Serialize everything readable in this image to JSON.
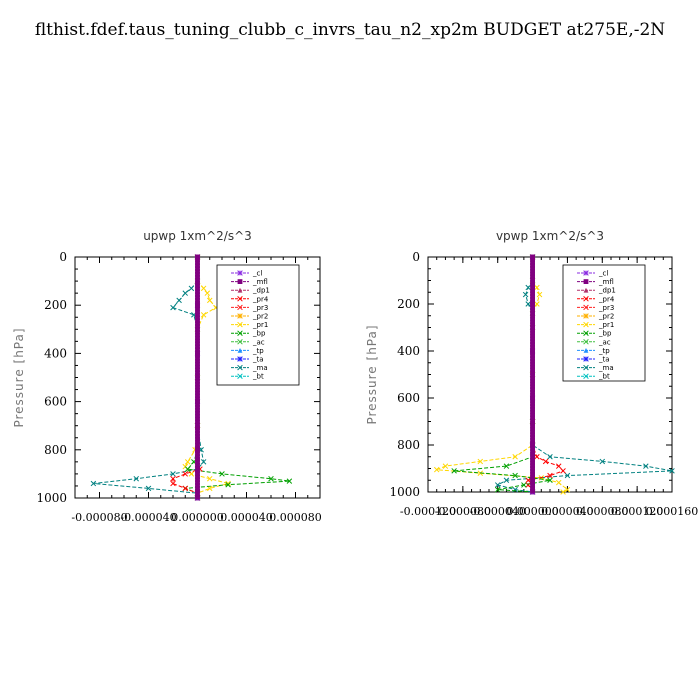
{
  "title": "flthist.fdef.taus_tuning_clubb_c_invrs_tau_n2_xp2m  BUDGET at275E,-2N",
  "legend_entries": [
    "_cl",
    "_mfl",
    "_dp1",
    "_pr4",
    "_pr3",
    "_pr2",
    "_pr1",
    "_bp",
    "_ac",
    "_tp",
    "_ta",
    "_ma",
    "_bt"
  ],
  "series_styles": [
    {
      "name": "_cl",
      "color": "#8a2be2",
      "marker": "star"
    },
    {
      "name": "_mfl",
      "color": "#800080",
      "marker": "square"
    },
    {
      "name": "_dp1",
      "color": "#b0306a",
      "marker": "tri"
    },
    {
      "name": "_pr4",
      "color": "#ff0000",
      "marker": "x"
    },
    {
      "name": "_pr3",
      "color": "#ff2020",
      "marker": "x"
    },
    {
      "name": "_pr2",
      "color": "#ffb000",
      "marker": "star"
    },
    {
      "name": "_pr1",
      "color": "#ffd700",
      "marker": "x"
    },
    {
      "name": "_bp",
      "color": "#00a000",
      "marker": "x"
    },
    {
      "name": "_ac",
      "color": "#40c040",
      "marker": "x"
    },
    {
      "name": "_tp",
      "color": "#1e90ff",
      "marker": "tri"
    },
    {
      "name": "_ta",
      "color": "#2020ff",
      "marker": "star"
    },
    {
      "name": "_ma",
      "color": "#008080",
      "marker": "x"
    },
    {
      "name": "_bt",
      "color": "#00c0c0",
      "marker": "x"
    }
  ],
  "chart_data": [
    {
      "type": "line",
      "title": "upwp   1xm^2/s^3",
      "ylabel": "Pressure [hPa]",
      "xlabel": "",
      "xlim": [
        -0.0001,
        0.0001
      ],
      "ylim": [
        1000,
        0
      ],
      "xticks": [
        -8e-05,
        -4e-05,
        0.0,
        4e-05,
        8e-05
      ],
      "xtick_labels": [
        "-0.000080",
        "-0.000040",
        "0.000000",
        "0.000040",
        "0.000080"
      ],
      "yticks": [
        0,
        200,
        400,
        600,
        800,
        1000
      ],
      "legend_position": "top-right",
      "series": [
        {
          "name": "_ma",
          "y": [
            0,
            100,
            130,
            150,
            180,
            210,
            240,
            300,
            500,
            700,
            800,
            850,
            880,
            900,
            920,
            940,
            960,
            980,
            1000
          ],
          "x": [
            0,
            0,
            -5e-06,
            -1e-05,
            -1.5e-05,
            -2e-05,
            -3e-06,
            0,
            0,
            0,
            3e-06,
            5e-06,
            0,
            -2e-05,
            -5e-05,
            -8.5e-05,
            -4e-05,
            0,
            0
          ]
        },
        {
          "name": "_pr1",
          "y": [
            0,
            100,
            130,
            150,
            180,
            210,
            240,
            300,
            500,
            700,
            800,
            850,
            870,
            900,
            920,
            940,
            960,
            980,
            1000
          ],
          "x": [
            0,
            0,
            5e-06,
            8e-06,
            1e-05,
            1.5e-05,
            5e-06,
            0,
            0,
            0,
            -2e-06,
            -8e-06,
            -1e-05,
            -5e-06,
            1e-05,
            2.5e-05,
            1e-05,
            0,
            0
          ]
        },
        {
          "name": "_bp",
          "y": [
            0,
            700,
            800,
            850,
            880,
            900,
            920,
            930,
            945,
            960,
            980,
            1000
          ],
          "x": [
            0,
            0,
            0,
            -3e-06,
            -8e-06,
            2e-05,
            6e-05,
            7.5e-05,
            2.5e-05,
            -1e-05,
            0,
            0
          ]
        },
        {
          "name": "_pr4",
          "y": [
            0,
            700,
            800,
            850,
            880,
            900,
            920,
            940,
            960,
            980,
            1000
          ],
          "x": [
            0,
            0,
            0,
            0,
            2e-06,
            -1e-05,
            -2e-05,
            -2e-05,
            -1e-05,
            0,
            0
          ]
        },
        {
          "name": "_mfl",
          "y": [
            0,
            200,
            400,
            600,
            800,
            1000
          ],
          "x": [
            0,
            0,
            0,
            0,
            0,
            0
          ]
        },
        {
          "name": "_cl",
          "y": [
            0,
            200,
            400,
            600,
            800,
            1000
          ],
          "x": [
            0,
            0,
            0,
            0,
            0,
            0
          ]
        }
      ]
    },
    {
      "type": "line",
      "title": "vpwp   1xm^2/s^3",
      "ylabel": "Pressure [hPa]",
      "xlabel": "",
      "xlim": [
        -0.00012,
        0.00016
      ],
      "ylim": [
        1000,
        0
      ],
      "xticks": [
        -0.00012,
        -8e-05,
        -4e-05,
        0.0,
        4e-05,
        8e-05,
        0.00012,
        0.00016
      ],
      "xtick_labels": [
        "-0.000120",
        "-0.000080",
        "-0.000040",
        "0.000000",
        "0.000040",
        "0.000080",
        "0.000120",
        "0.000160"
      ],
      "yticks": [
        0,
        200,
        400,
        600,
        800,
        1000
      ],
      "legend_position": "top-right",
      "series": [
        {
          "name": "_ma",
          "y": [
            0,
            100,
            130,
            160,
            200,
            240,
            300,
            500,
            700,
            800,
            850,
            870,
            890,
            910,
            930,
            950,
            970,
            990,
            1000
          ],
          "x": [
            0,
            0,
            -5e-06,
            -8e-06,
            -5e-06,
            0,
            0,
            0,
            0,
            0,
            2e-05,
            8e-05,
            0.00013,
            0.00016,
            4e-05,
            -3e-05,
            -4e-05,
            -2e-05,
            0
          ]
        },
        {
          "name": "_pr1",
          "y": [
            0,
            100,
            130,
            160,
            200,
            240,
            300,
            500,
            700,
            800,
            850,
            870,
            890,
            905,
            920,
            940,
            960,
            990,
            1000
          ],
          "x": [
            0,
            0,
            5e-06,
            8e-06,
            5e-06,
            0,
            0,
            0,
            0,
            0,
            -2e-05,
            -6e-05,
            -0.0001,
            -0.00011,
            -6e-05,
            1e-05,
            3e-05,
            4e-05,
            3.5e-05
          ]
        },
        {
          "name": "_pr4",
          "y": [
            0,
            700,
            800,
            850,
            870,
            890,
            910,
            930,
            950,
            970,
            1000
          ],
          "x": [
            0,
            0,
            0,
            5e-06,
            1.5e-05,
            3e-05,
            3.5e-05,
            2e-05,
            -5e-06,
            -5e-06,
            0
          ]
        },
        {
          "name": "_bp",
          "y": [
            0,
            700,
            800,
            850,
            890,
            910,
            930,
            950,
            970,
            990,
            1000
          ],
          "x": [
            0,
            0,
            0,
            0,
            -3e-05,
            -9e-05,
            -2e-05,
            2e-05,
            -1e-05,
            -4e-05,
            0
          ]
        },
        {
          "name": "_mfl",
          "y": [
            0,
            200,
            400,
            600,
            800,
            1000
          ],
          "x": [
            0,
            0,
            0,
            0,
            0,
            0
          ]
        },
        {
          "name": "_cl",
          "y": [
            0,
            200,
            400,
            600,
            800,
            1000
          ],
          "x": [
            0,
            0,
            0,
            0,
            0,
            0
          ]
        }
      ]
    }
  ]
}
